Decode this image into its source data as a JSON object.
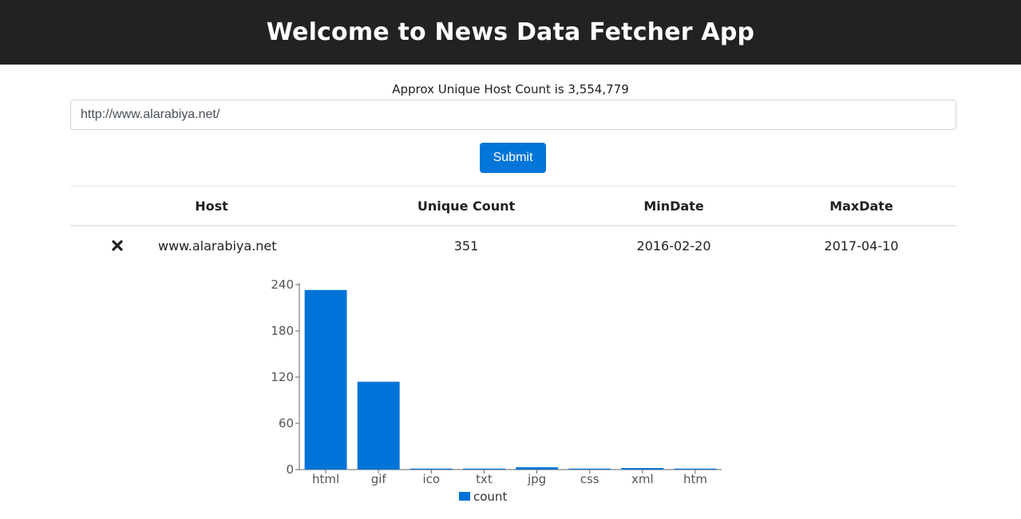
{
  "header": {
    "title": "Welcome to News Data Fetcher App"
  },
  "summary": {
    "text": "Approx Unique Host Count is 3,554,779"
  },
  "search": {
    "value": "http://www.alarabiya.net/",
    "submit_label": "Submit"
  },
  "table": {
    "columns": [
      "Host",
      "Unique Count",
      "MinDate",
      "MaxDate"
    ],
    "rows": [
      {
        "host": "www.alarabiya.net",
        "unique_count": "351",
        "min_date": "2016-02-20",
        "max_date": "2017-04-10"
      }
    ]
  },
  "colors": {
    "header_bg": "#222222",
    "accent": "#0275d8",
    "bar": "#0073d8"
  },
  "chart_data": {
    "type": "bar",
    "categories": [
      "html",
      "gif",
      "ico",
      "txt",
      "jpg",
      "css",
      "xml",
      "htm"
    ],
    "series": [
      {
        "name": "count",
        "values": [
          233,
          114,
          1,
          1,
          3,
          1,
          2,
          1
        ]
      }
    ],
    "ylim": [
      0,
      240
    ],
    "yticks": [
      0,
      60,
      120,
      180,
      240
    ],
    "legend": "bottom",
    "grid": false
  }
}
